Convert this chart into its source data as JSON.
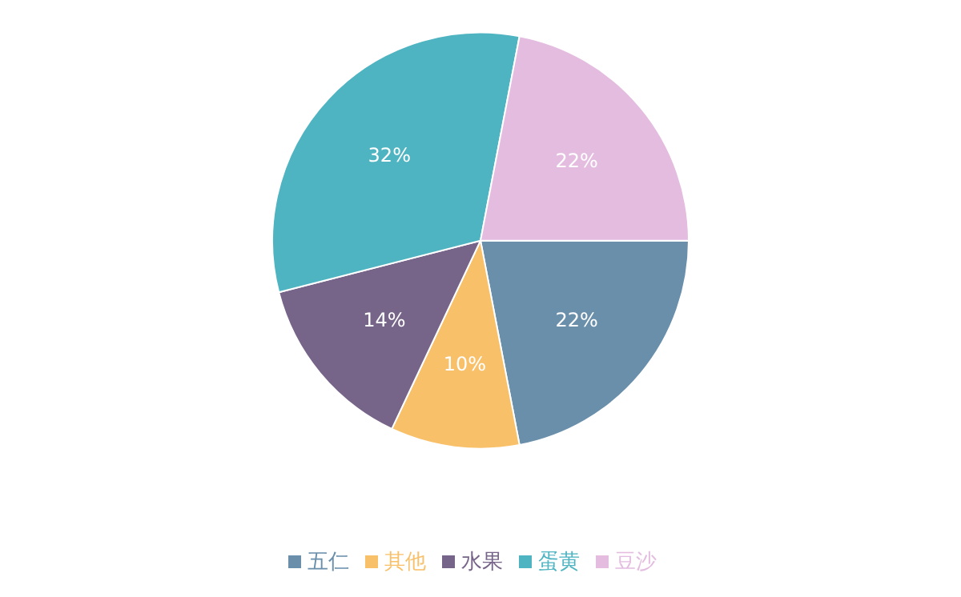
{
  "chart_data": {
    "type": "pie",
    "categories": [
      "五仁",
      "其他",
      "水果",
      "蛋黄",
      "豆沙"
    ],
    "values": [
      22,
      10,
      14,
      32,
      22
    ],
    "value_labels": [
      "22%",
      "10%",
      "14%",
      "32%",
      "22%"
    ],
    "colors": [
      "#6a8fab",
      "#f9c06a",
      "#776489",
      "#4fb4c1",
      "#e3bce0"
    ],
    "legend": "bottom"
  }
}
